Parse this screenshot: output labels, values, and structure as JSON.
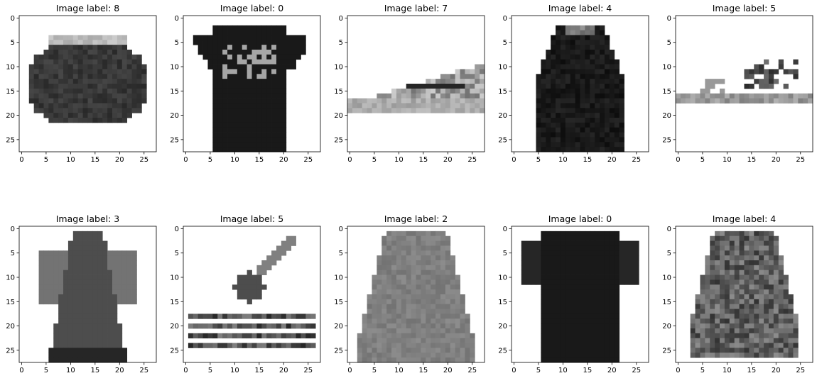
{
  "chart_data": [
    {
      "type": "heatmap",
      "title": "Image label: 8",
      "colormap": "binary",
      "xlim": [
        -0.5,
        27.5
      ],
      "ylim": [
        27.5,
        -0.5
      ],
      "xticks": [
        0,
        5,
        10,
        15,
        20,
        25
      ],
      "yticks": [
        0,
        5,
        10,
        15,
        20,
        25
      ],
      "shape": "bag"
    },
    {
      "type": "heatmap",
      "title": "Image label: 0",
      "colormap": "binary",
      "xlim": [
        -0.5,
        27.5
      ],
      "ylim": [
        27.5,
        -0.5
      ],
      "xticks": [
        0,
        5,
        10,
        15,
        20,
        25
      ],
      "yticks": [
        0,
        5,
        10,
        15,
        20,
        25
      ],
      "shape": "tshirt-dark"
    },
    {
      "type": "heatmap",
      "title": "Image label: 7",
      "colormap": "binary",
      "xlim": [
        -0.5,
        27.5
      ],
      "ylim": [
        27.5,
        -0.5
      ],
      "xticks": [
        0,
        5,
        10,
        15,
        20,
        25
      ],
      "yticks": [
        0,
        5,
        10,
        15,
        20,
        25
      ],
      "shape": "sneaker"
    },
    {
      "type": "heatmap",
      "title": "Image label: 4",
      "colormap": "binary",
      "xlim": [
        -0.5,
        27.5
      ],
      "ylim": [
        27.5,
        -0.5
      ],
      "xticks": [
        0,
        5,
        10,
        15,
        20,
        25
      ],
      "yticks": [
        0,
        5,
        10,
        15,
        20,
        25
      ],
      "shape": "coat-dark"
    },
    {
      "type": "heatmap",
      "title": "Image label: 5",
      "colormap": "binary",
      "xlim": [
        -0.5,
        27.5
      ],
      "ylim": [
        27.5,
        -0.5
      ],
      "xticks": [
        0,
        5,
        10,
        15,
        20,
        25
      ],
      "yticks": [
        0,
        5,
        10,
        15,
        20,
        25
      ],
      "shape": "sandal-light"
    },
    {
      "type": "heatmap",
      "title": "Image label: 3",
      "colormap": "binary",
      "xlim": [
        -0.5,
        27.5
      ],
      "ylim": [
        27.5,
        -0.5
      ],
      "xticks": [
        0,
        5,
        10,
        15,
        20,
        25
      ],
      "yticks": [
        0,
        5,
        10,
        15,
        20,
        25
      ],
      "shape": "dress"
    },
    {
      "type": "heatmap",
      "title": "Image label: 5",
      "colormap": "binary",
      "xlim": [
        -0.5,
        27.5
      ],
      "ylim": [
        27.5,
        -0.5
      ],
      "xticks": [
        0,
        5,
        10,
        15,
        20,
        25
      ],
      "yticks": [
        0,
        5,
        10,
        15,
        20,
        25
      ],
      "shape": "sandal-strappy"
    },
    {
      "type": "heatmap",
      "title": "Image label: 2",
      "colormap": "binary",
      "xlim": [
        -0.5,
        27.5
      ],
      "ylim": [
        27.5,
        -0.5
      ],
      "xticks": [
        0,
        5,
        10,
        15,
        20,
        25
      ],
      "yticks": [
        0,
        5,
        10,
        15,
        20,
        25
      ],
      "shape": "pullover"
    },
    {
      "type": "heatmap",
      "title": "Image label: 0",
      "colormap": "binary",
      "xlim": [
        -0.5,
        27.5
      ],
      "ylim": [
        27.5,
        -0.5
      ],
      "xticks": [
        0,
        5,
        10,
        15,
        20,
        25
      ],
      "yticks": [
        0,
        5,
        10,
        15,
        20,
        25
      ],
      "shape": "tshirt-plain"
    },
    {
      "type": "heatmap",
      "title": "Image label: 4",
      "colormap": "binary",
      "xlim": [
        -0.5,
        27.5
      ],
      "ylim": [
        27.5,
        -0.5
      ],
      "xticks": [
        0,
        5,
        10,
        15,
        20,
        25
      ],
      "yticks": [
        0,
        5,
        10,
        15,
        20,
        25
      ],
      "shape": "coat-textured"
    }
  ]
}
